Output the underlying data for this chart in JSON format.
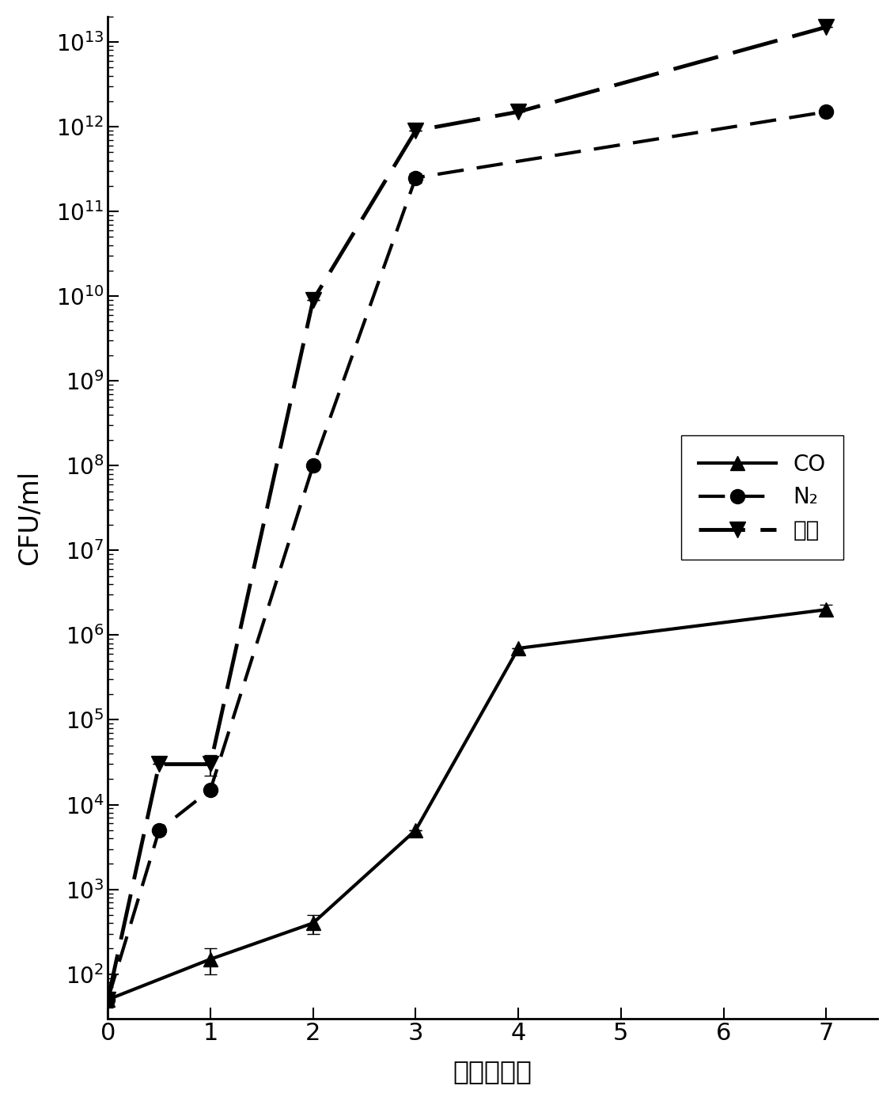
{
  "CO_x": [
    0,
    1,
    2,
    3,
    4,
    7
  ],
  "CO_y": [
    50,
    150,
    400,
    5000,
    700000,
    2000000
  ],
  "CO_yerr_low": [
    0,
    50,
    100,
    0,
    0,
    300000
  ],
  "CO_yerr_high": [
    0,
    50,
    100,
    0,
    0,
    300000
  ],
  "N2_x": [
    0,
    0.5,
    1,
    2,
    3,
    7
  ],
  "N2_y": [
    50,
    5000,
    15000,
    100000000.0,
    250000000000.0,
    1500000000000.0
  ],
  "N2_yerr_low": [
    0,
    0,
    0,
    0,
    30000000000.0,
    0
  ],
  "N2_yerr_high": [
    0,
    0,
    0,
    0,
    30000000000.0,
    0
  ],
  "Air_x": [
    0,
    0.5,
    1,
    2,
    3,
    4,
    7
  ],
  "Air_y": [
    50,
    30000,
    30000,
    9000000000.0,
    900000000000.0,
    1500000000000.0,
    15000000000000.0
  ],
  "Air_yerr_low": [
    0,
    0,
    8000,
    0,
    0,
    0,
    0
  ],
  "Air_yerr_high": [
    0,
    0,
    8000,
    0,
    0,
    0,
    0
  ],
  "xlabel": "时间（天）",
  "ylabel": "CFU/ml",
  "ylim_bottom": 30,
  "ylim_top": 20000000000000.0,
  "xlim": [
    0,
    7.5
  ],
  "legend_CO": "CO",
  "legend_N2": "N₂",
  "legend_Air": "空气",
  "background_color": "#ffffff",
  "line_color": "#000000"
}
